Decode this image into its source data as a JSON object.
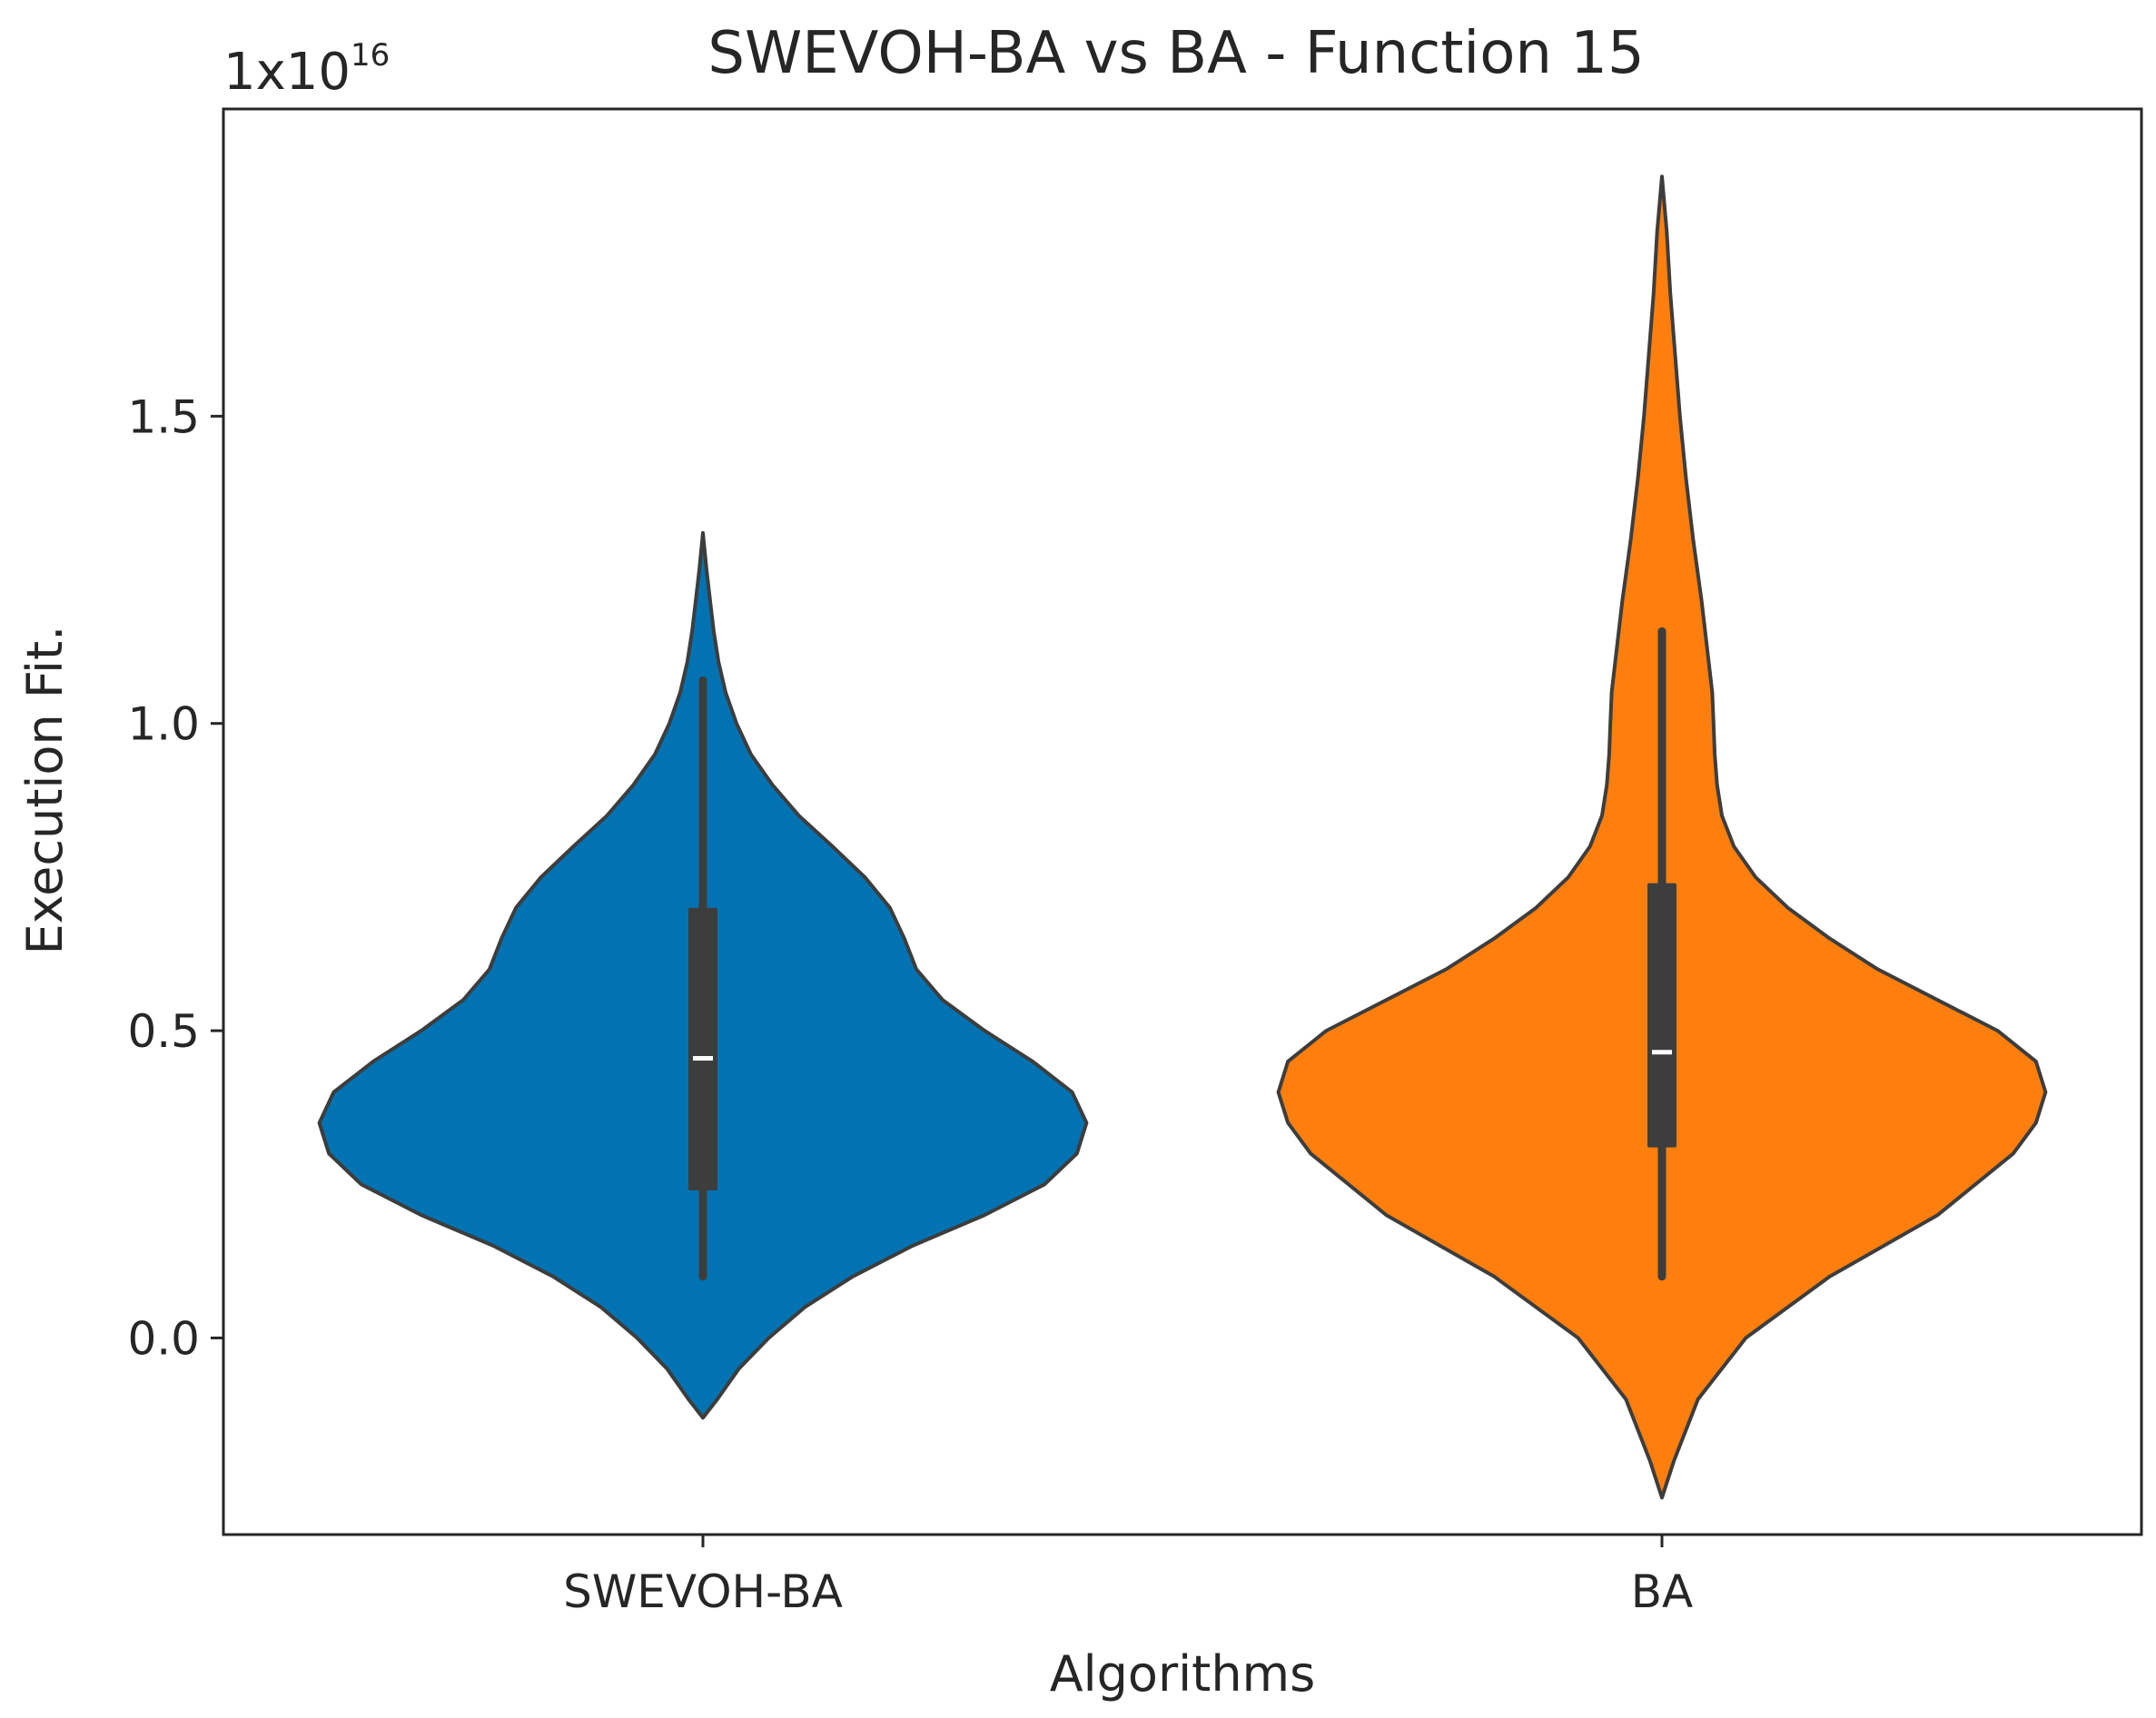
{
  "chart_data": {
    "type": "violin",
    "title": "SWEVOH-BA vs BA - Function 15",
    "xlabel": "Algorithms",
    "ylabel": "Execution Fit.",
    "y_scale_note": {
      "base": "1x10",
      "exponent": "16"
    },
    "ylim": [
      -0.32,
      2.0
    ],
    "yticks": [
      0.0,
      0.5,
      1.0,
      1.5
    ],
    "ytick_labels": [
      "0.0",
      "0.5",
      "1.0",
      "1.5"
    ],
    "categories": [
      "SWEVOH-BA",
      "BA"
    ],
    "series": [
      {
        "name": "SWEVOH-BA",
        "color": "#0173b2",
        "min": -0.13,
        "max": 1.31,
        "whisker_low": 0.1,
        "whisker_high": 1.07,
        "q1": 0.24,
        "median": 0.455,
        "q3": 0.7,
        "max_halfwidth": 0.32,
        "profile": [
          [
            -0.13,
            0.0
          ],
          [
            -0.1,
            0.012
          ],
          [
            -0.05,
            0.03
          ],
          [
            0.0,
            0.055
          ],
          [
            0.05,
            0.085
          ],
          [
            0.1,
            0.125
          ],
          [
            0.15,
            0.175
          ],
          [
            0.2,
            0.235
          ],
          [
            0.25,
            0.285
          ],
          [
            0.3,
            0.312
          ],
          [
            0.35,
            0.32
          ],
          [
            0.4,
            0.308
          ],
          [
            0.45,
            0.275
          ],
          [
            0.5,
            0.235
          ],
          [
            0.55,
            0.2
          ],
          [
            0.6,
            0.178
          ],
          [
            0.65,
            0.168
          ],
          [
            0.7,
            0.156
          ],
          [
            0.75,
            0.135
          ],
          [
            0.8,
            0.108
          ],
          [
            0.85,
            0.08
          ],
          [
            0.9,
            0.058
          ],
          [
            0.95,
            0.04
          ],
          [
            1.0,
            0.028
          ],
          [
            1.05,
            0.019
          ],
          [
            1.1,
            0.013
          ],
          [
            1.15,
            0.009
          ],
          [
            1.2,
            0.006
          ],
          [
            1.25,
            0.003
          ],
          [
            1.31,
            0.0
          ]
        ]
      },
      {
        "name": "BA",
        "color": "#ff7f0e",
        "min": -0.26,
        "max": 1.89,
        "whisker_low": 0.1,
        "whisker_high": 1.15,
        "q1": 0.31,
        "median": 0.465,
        "q3": 0.74,
        "max_halfwidth": 0.32,
        "profile": [
          [
            -0.26,
            0.0
          ],
          [
            -0.2,
            0.01
          ],
          [
            -0.1,
            0.03
          ],
          [
            0.0,
            0.07
          ],
          [
            0.1,
            0.14
          ],
          [
            0.2,
            0.23
          ],
          [
            0.3,
            0.293
          ],
          [
            0.35,
            0.312
          ],
          [
            0.4,
            0.32
          ],
          [
            0.45,
            0.312
          ],
          [
            0.5,
            0.28
          ],
          [
            0.55,
            0.23
          ],
          [
            0.6,
            0.18
          ],
          [
            0.65,
            0.14
          ],
          [
            0.7,
            0.105
          ],
          [
            0.75,
            0.078
          ],
          [
            0.8,
            0.06
          ],
          [
            0.85,
            0.05
          ],
          [
            0.9,
            0.046
          ],
          [
            0.95,
            0.044
          ],
          [
            1.0,
            0.043
          ],
          [
            1.05,
            0.042
          ],
          [
            1.1,
            0.039
          ],
          [
            1.2,
            0.033
          ],
          [
            1.3,
            0.026
          ],
          [
            1.4,
            0.02
          ],
          [
            1.5,
            0.015
          ],
          [
            1.6,
            0.011
          ],
          [
            1.7,
            0.007
          ],
          [
            1.8,
            0.004
          ],
          [
            1.89,
            0.0
          ]
        ]
      }
    ]
  }
}
